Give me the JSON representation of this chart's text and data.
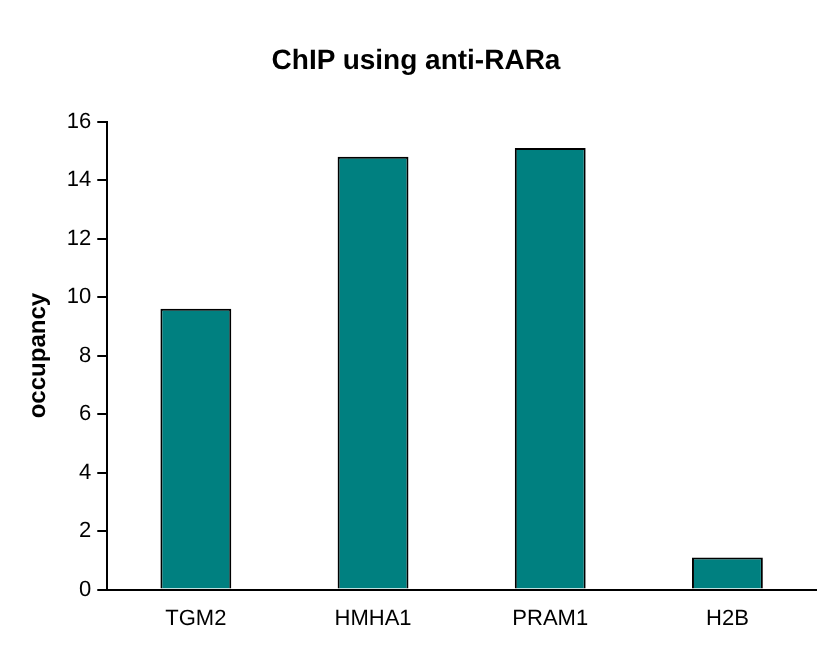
{
  "chart_data": {
    "type": "bar",
    "title": "ChIP using anti-RARa",
    "ylabel": "occupancy",
    "categories": [
      "TGM2",
      "HMHA1",
      "PRAM1",
      "H2B"
    ],
    "values": [
      9.6,
      14.8,
      15.1,
      1.1
    ],
    "color": "#008080",
    "ylim": [
      0,
      16
    ],
    "yticks": [
      0,
      2,
      4,
      6,
      8,
      10,
      12,
      14,
      16
    ],
    "grid": false,
    "legend": false
  }
}
